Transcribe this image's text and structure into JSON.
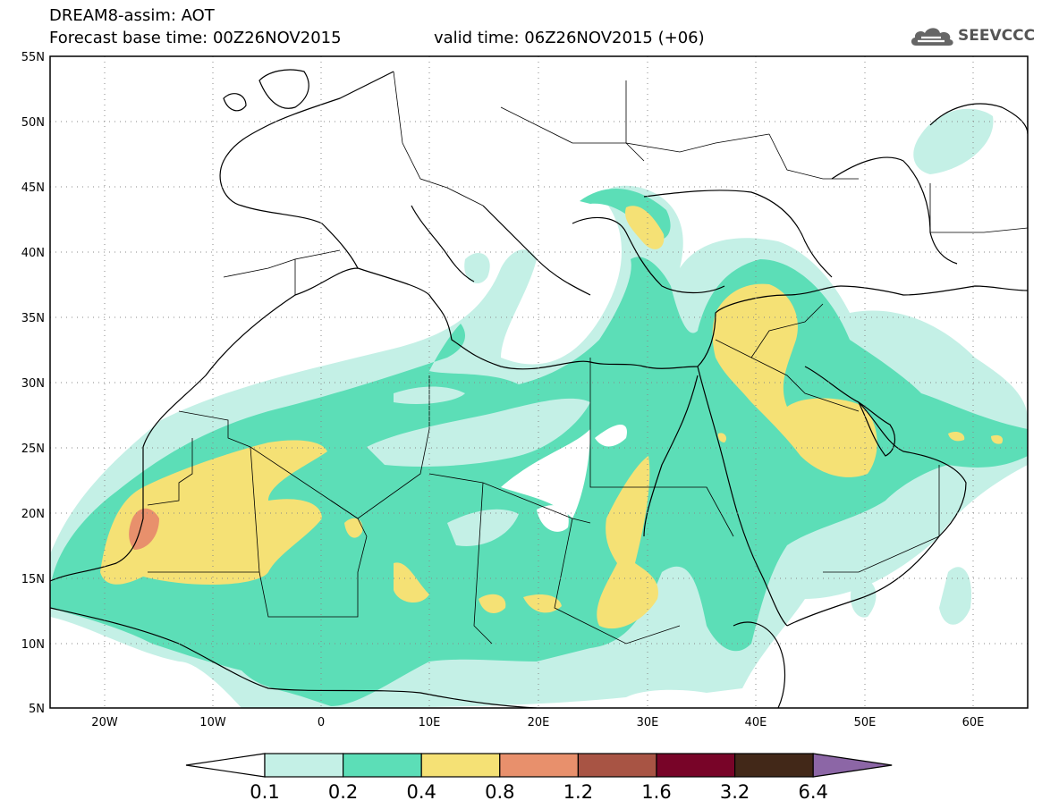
{
  "title": {
    "model": "DREAM8-assim: AOT",
    "base_time": "Forecast base time: 00Z26NOV2015",
    "valid_time": "valid time: 06Z26NOV2015 (+06)"
  },
  "logo": {
    "text": "SEEVCCC",
    "icon": "cloud-icon"
  },
  "map": {
    "lon_ticks": [
      "20W",
      "10W",
      "0",
      "10E",
      "20E",
      "30E",
      "40E",
      "50E",
      "60E"
    ],
    "lat_ticks": [
      "55N",
      "50N",
      "45N",
      "40N",
      "35N",
      "30N",
      "25N",
      "20N",
      "15N",
      "10N",
      "5N"
    ],
    "lon_range": [
      -25,
      65
    ],
    "lat_range": [
      5,
      55
    ],
    "grid": "dotted"
  },
  "colorbar": {
    "labels": [
      "0.1",
      "0.2",
      "0.4",
      "0.8",
      "1.2",
      "1.6",
      "3.2",
      "6.4"
    ],
    "colors": [
      "#ffffff",
      "#c4f0e6",
      "#5cdeb7",
      "#f5e175",
      "#e8906c",
      "#a85444",
      "#780428",
      "#422818",
      "#8c66a6"
    ]
  }
}
